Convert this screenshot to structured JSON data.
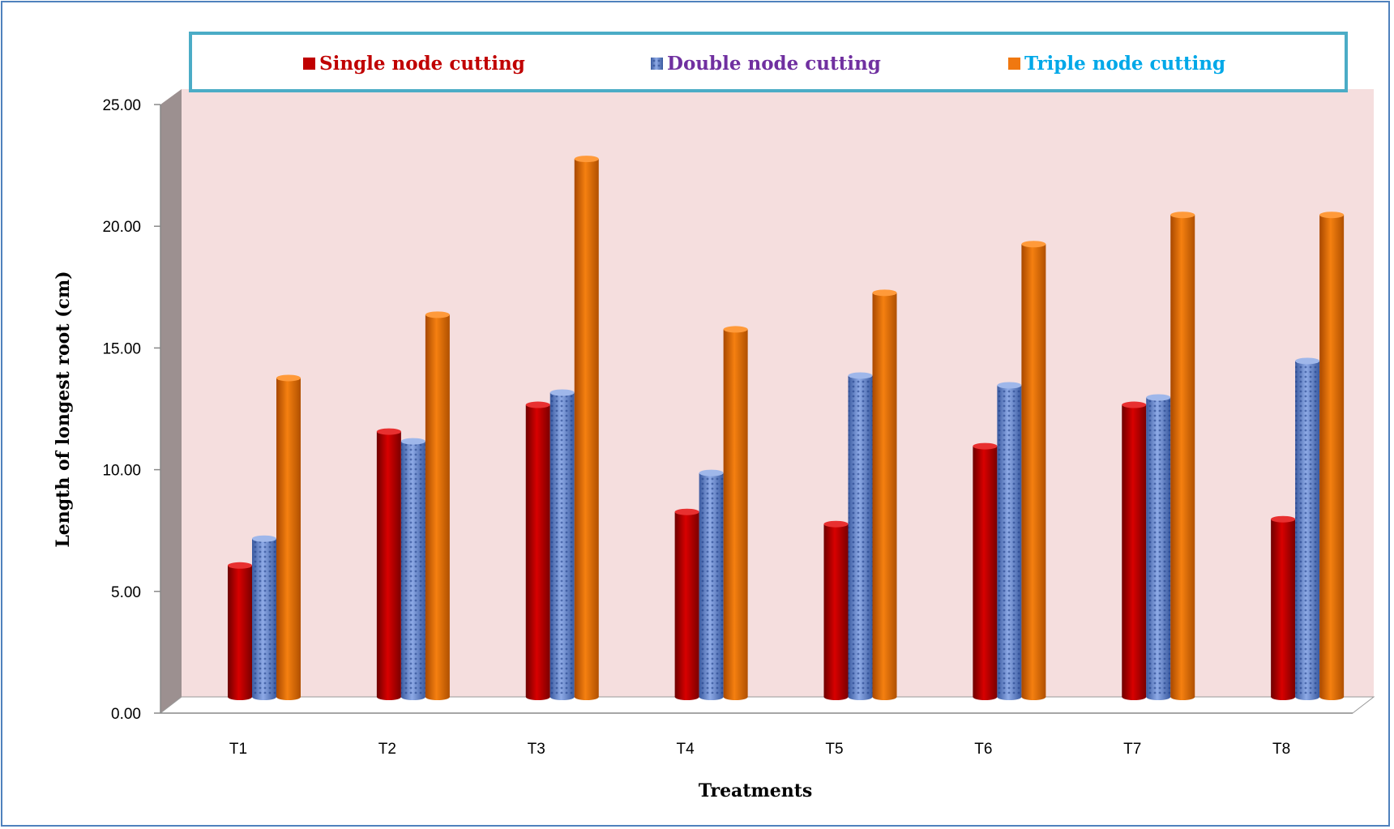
{
  "chart_data": {
    "type": "bar",
    "xlabel": "Treatments",
    "ylabel": "Length of longest root (cm)",
    "categories": [
      "T1",
      "T2",
      "T3",
      "T4",
      "T5",
      "T6",
      "T7",
      "T8"
    ],
    "ylim": [
      0,
      25
    ],
    "yticks": [
      "0.00",
      "5.00",
      "10.00",
      "15.00",
      "20.00",
      "25.00"
    ],
    "grid": false,
    "legend_position": "top",
    "series": [
      {
        "name": "Single node cutting",
        "color": "#c00000",
        "text_color": "#c00000",
        "values": [
          5.4,
          10.9,
          12.0,
          7.6,
          7.1,
          10.3,
          12.0,
          7.3
        ]
      },
      {
        "name": "Double node cutting",
        "color": "#5b7fc7",
        "text_color": "#7030a0",
        "values": [
          6.5,
          10.5,
          12.5,
          9.2,
          13.2,
          12.8,
          12.3,
          13.8
        ]
      },
      {
        "name": "Triple node cutting",
        "color": "#f07810",
        "text_color": "#00a8e8",
        "values": [
          13.1,
          15.7,
          22.1,
          15.1,
          16.6,
          18.6,
          19.8,
          19.8
        ]
      }
    ]
  }
}
